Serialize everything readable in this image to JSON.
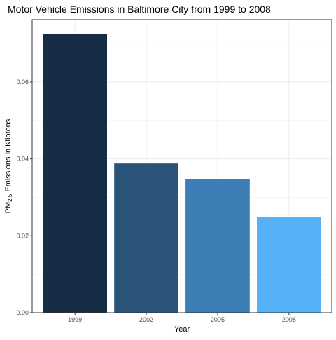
{
  "chart_data": {
    "type": "bar",
    "title": "Motor Vehicle Emissions in Baltimore City from 1999 to 2008",
    "xlabel": "Year",
    "ylabel": {
      "prefix": "PM",
      "subscript": "2.5",
      "suffix": " Emissions in Kilotons"
    },
    "categories": [
      "1999",
      "2002",
      "2005",
      "2008"
    ],
    "values": [
      0.0725,
      0.0388,
      0.0347,
      0.0248
    ],
    "ylim": [
      0,
      0.0762
    ],
    "yticks": [
      0.0,
      0.02,
      0.04,
      0.06
    ],
    "ytick_labels": [
      "0.00",
      "0.02",
      "0.04",
      "0.06"
    ],
    "colors": [
      "#162d45",
      "#2a5478",
      "#3b7fb6",
      "#56b1f7"
    ],
    "grid": true,
    "legend": "none"
  }
}
